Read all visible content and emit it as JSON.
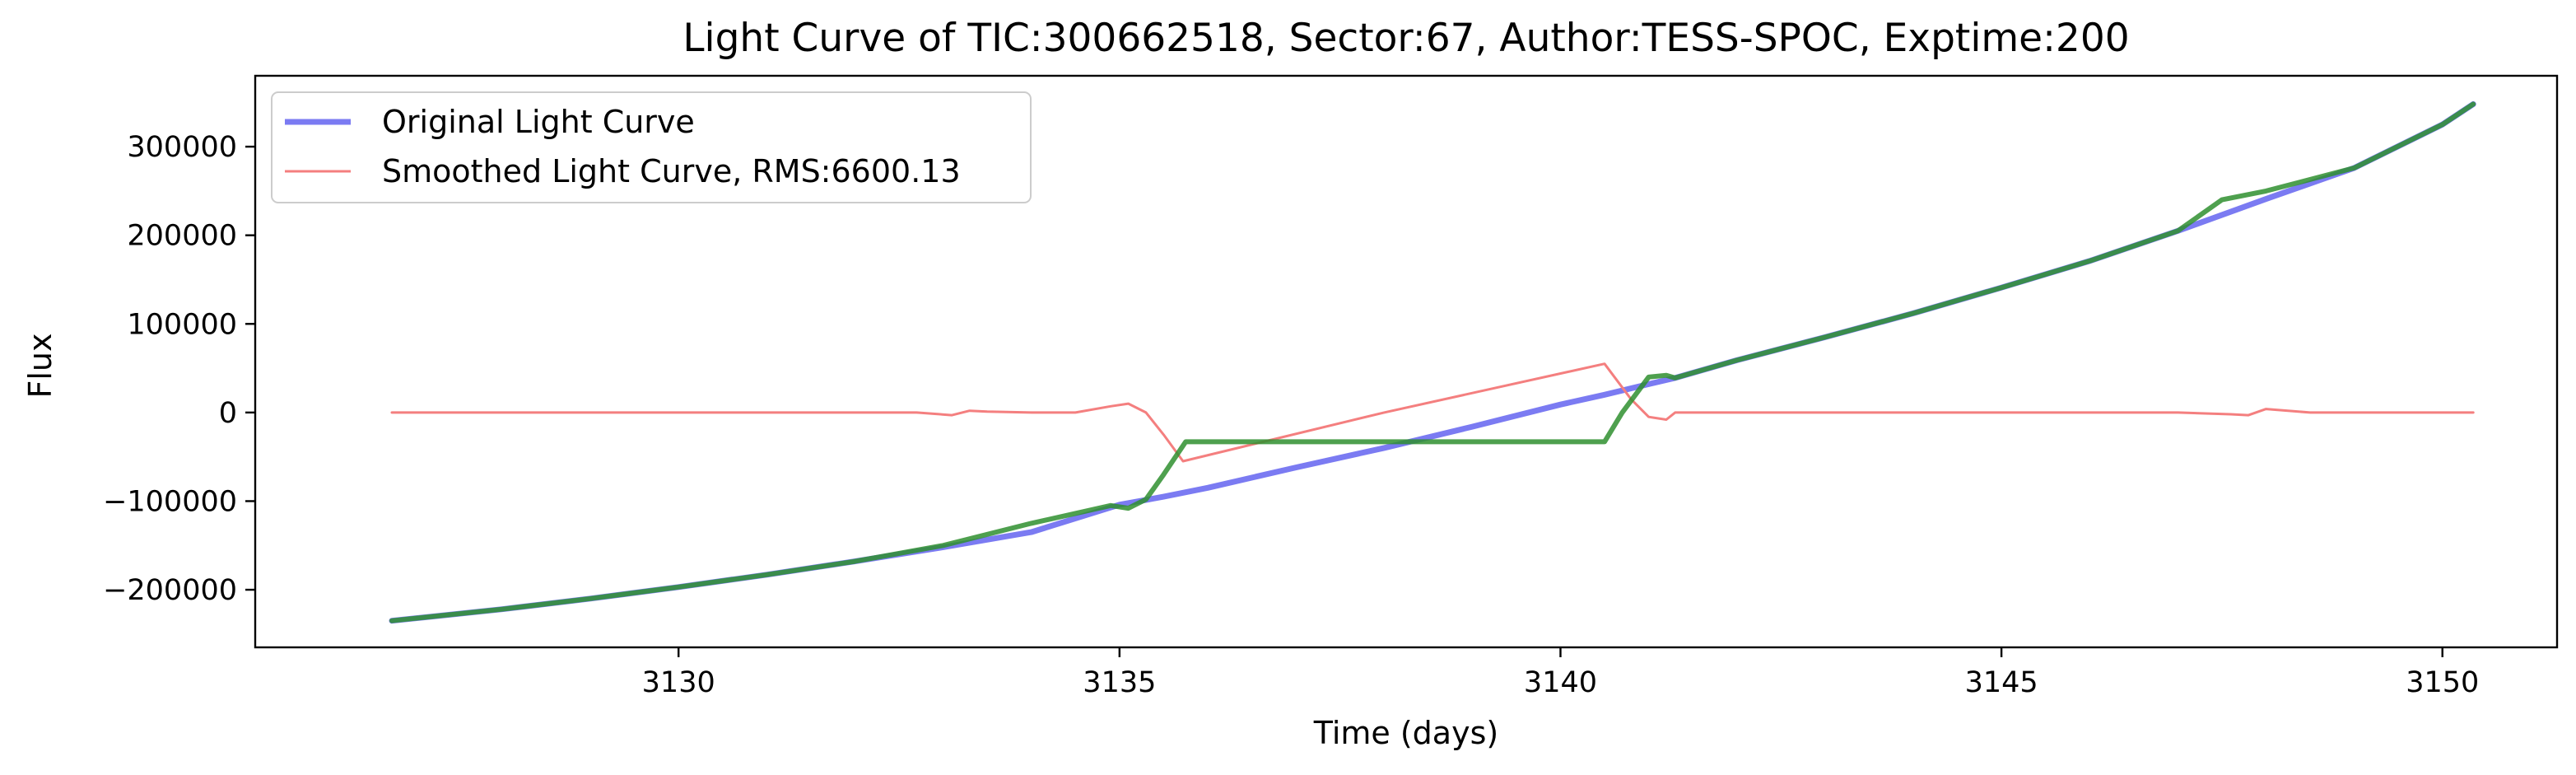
{
  "chart_data": {
    "type": "line",
    "title": "Light Curve of TIC:300662518, Sector:67, Author:TESS-SPOC, Exptime:200",
    "xlabel": "Time (days)",
    "ylabel": "Flux",
    "xlim": [
      3125.2,
      3151.3
    ],
    "ylim": [
      -265000,
      380000
    ],
    "xticks": [
      3130,
      3135,
      3140,
      3145,
      3150
    ],
    "xtick_labels": [
      "3130",
      "3135",
      "3140",
      "3145",
      "3150"
    ],
    "yticks": [
      -200000,
      -100000,
      0,
      100000,
      200000,
      300000
    ],
    "ytick_labels": [
      "−200000",
      "−100000",
      "0",
      "100000",
      "200000",
      "300000"
    ],
    "grid": false,
    "legend_position": "upper-left",
    "series": [
      {
        "name": "Original Light Curve",
        "color": "#7b7bf2",
        "x": [
          3126.75,
          3128,
          3129,
          3130,
          3131,
          3132,
          3133,
          3134,
          3135,
          3135.5,
          3136,
          3137,
          3138,
          3139,
          3140,
          3140.5,
          3141,
          3141.3,
          3142,
          3143,
          3144,
          3145,
          3146,
          3147,
          3148,
          3149,
          3150,
          3150.35
        ],
        "y": [
          -235000,
          -222000,
          -210000,
          -197000,
          -183000,
          -168000,
          -152000,
          -135000,
          -104000,
          -95000,
          -85000,
          -62000,
          -40000,
          -16000,
          9000,
          20000,
          32000,
          39000,
          59000,
          85000,
          112000,
          141000,
          171000,
          205000,
          241000,
          276000,
          325000,
          348000
        ]
      },
      {
        "name": "Smoothed Light Curve, RMS:6600.13",
        "color": "#f47f7f",
        "x": [
          3126.75,
          3128,
          3129,
          3130,
          3131,
          3132,
          3132.7,
          3133.1,
          3133.3,
          3133.5,
          3134,
          3134.5,
          3134.9,
          3135.1,
          3135.3,
          3135.5,
          3135.72,
          3138,
          3140.5,
          3140.8,
          3141.0,
          3141.2,
          3141.3,
          3142,
          3143,
          3144,
          3145,
          3146,
          3147,
          3147.6,
          3147.8,
          3148.0,
          3148.5,
          3149,
          3150,
          3150.35
        ],
        "y": [
          0,
          0,
          0,
          0,
          0,
          0,
          0,
          -3000,
          2000,
          1000,
          0,
          0,
          7000,
          10000,
          0,
          -25000,
          -55000,
          0,
          55000,
          15000,
          -5000,
          -8000,
          0,
          0,
          0,
          0,
          0,
          0,
          0,
          -2000,
          -3000,
          4000,
          0,
          0,
          0,
          0
        ]
      },
      {
        "name": "",
        "color": "#2f8f2f",
        "x": [
          3126.75,
          3128,
          3129,
          3130,
          3131,
          3132,
          3133,
          3134,
          3134.9,
          3135.1,
          3135.3,
          3135.5,
          3135.75,
          3140.5,
          3140.7,
          3141.0,
          3141.2,
          3141.3,
          3142,
          3143,
          3144,
          3145,
          3146,
          3147,
          3147.5,
          3148,
          3149,
          3150,
          3150.35
        ],
        "y": [
          -235000,
          -222000,
          -210000,
          -197000,
          -183000,
          -168000,
          -150000,
          -125000,
          -105000,
          -108000,
          -98000,
          -70000,
          -33000,
          -33000,
          0,
          40000,
          42000,
          39000,
          59000,
          85000,
          112000,
          141000,
          171000,
          205000,
          240000,
          250000,
          276000,
          325000,
          348000
        ]
      }
    ],
    "legend": [
      {
        "label": "Original Light Curve",
        "color": "#7b7bf2"
      },
      {
        "label": "Smoothed Light Curve, RMS:6600.13",
        "color": "#f47f7f"
      }
    ]
  }
}
